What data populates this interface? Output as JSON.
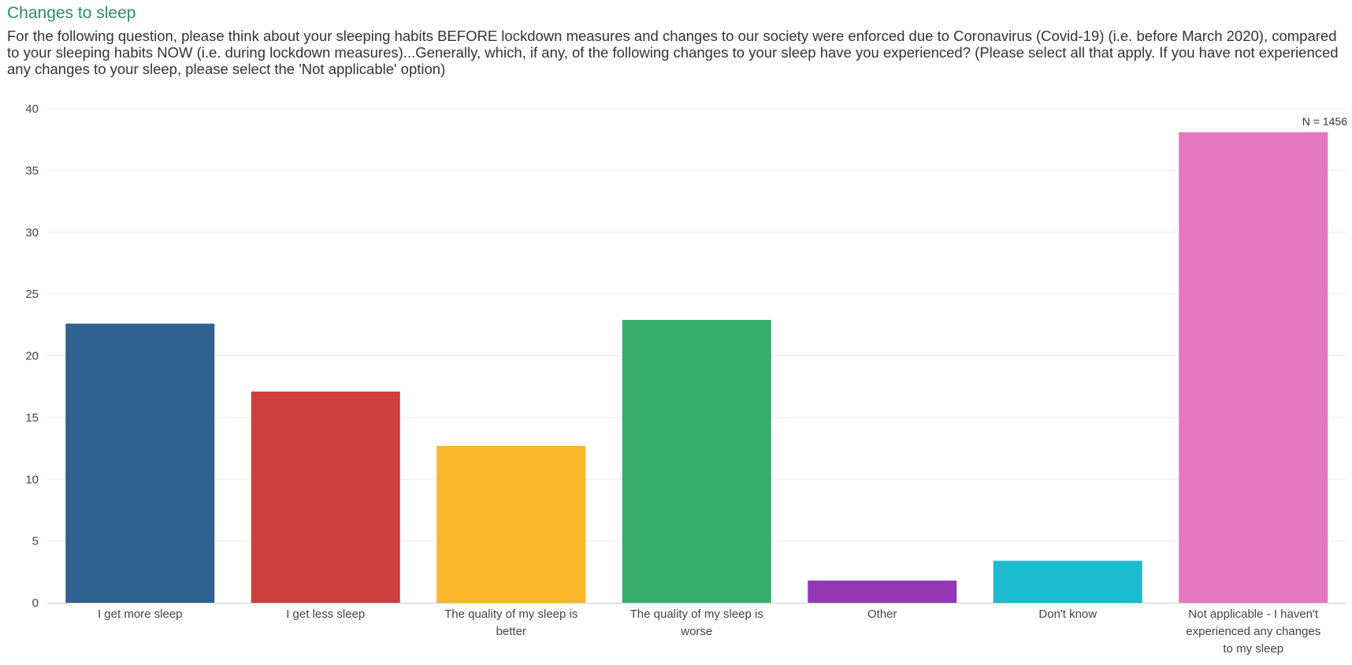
{
  "header": {
    "title": "Changes to sleep",
    "question": "For the following question, please think about your sleeping habits BEFORE lockdown measures and changes to our society were enforced due to Coronavirus (Covid-19) (i.e. before March 2020), compared to your sleeping habits NOW (i.e. during lockdown measures)...Generally, which, if any, of the following changes to your sleep have you experienced? (Please select all that apply. If you have not experienced any changes to your sleep, please select the 'Not applicable' option)"
  },
  "chart_data": {
    "type": "bar",
    "title": "Changes to sleep",
    "annotation": "N = 1456",
    "categories": [
      "I get more sleep",
      "I get less sleep",
      "The quality of my sleep is better",
      "The quality of my sleep is worse",
      "Other",
      "Don't know",
      "Not applicable - I haven't experienced any changes to my sleep"
    ],
    "category_lines": [
      [
        "I get more sleep"
      ],
      [
        "I get less sleep"
      ],
      [
        "The quality of my sleep is",
        "better"
      ],
      [
        "The quality of my sleep is",
        "worse"
      ],
      [
        "Other"
      ],
      [
        "Don't know"
      ],
      [
        "Not applicable - I haven't",
        "experienced any changes",
        "to my sleep"
      ]
    ],
    "values": [
      22.6,
      17.1,
      12.7,
      22.9,
      1.8,
      3.4,
      38.1
    ],
    "colors": [
      "#31628f",
      "#cf3e3e",
      "#fbb72b",
      "#37ad6c",
      "#9338b4",
      "#1bbccf",
      "#e577c1"
    ],
    "ylim": [
      0,
      40
    ],
    "yticks": [
      0,
      5,
      10,
      15,
      20,
      25,
      30,
      35,
      40
    ],
    "grid": true,
    "legend": "none"
  }
}
